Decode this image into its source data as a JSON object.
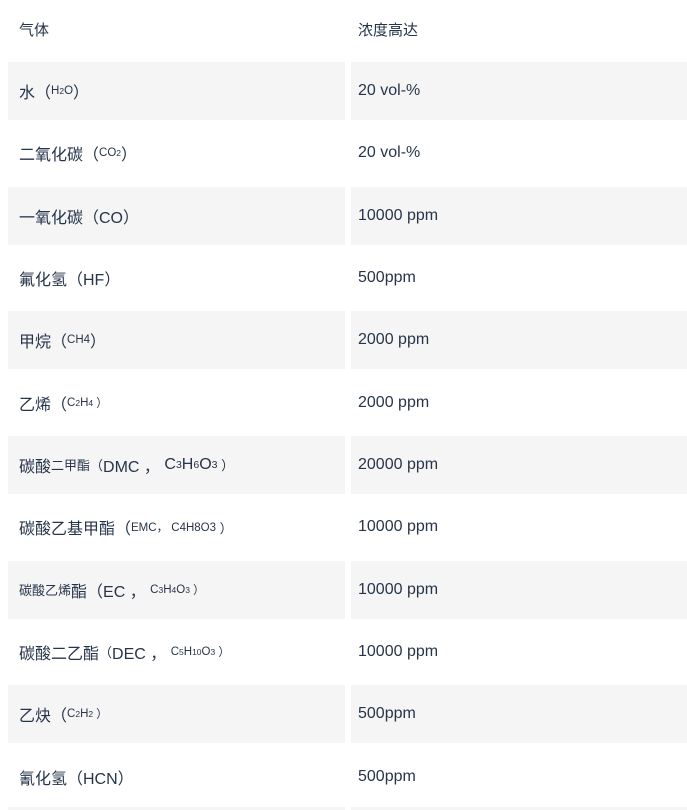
{
  "colors": {
    "page_bg": "#ffffff",
    "row_alt_bg": "#f5f5f5",
    "text": "#26354a"
  },
  "table": {
    "headers": [
      {
        "label": "气体"
      },
      {
        "label": "浓度高达"
      }
    ],
    "rows": [
      {
        "segments": [
          {
            "t": "水（",
            "c": "n"
          },
          {
            "t": "H",
            "c": "s"
          },
          {
            "t": "2",
            "c": "s-sub"
          },
          {
            "t": "O",
            "c": "s"
          },
          {
            "t": "）",
            "c": "n"
          }
        ],
        "value": "20 vol-%"
      },
      {
        "segments": [
          {
            "t": "二氧化碳（",
            "c": "n"
          },
          {
            "t": "CO",
            "c": "s"
          },
          {
            "t": "2",
            "c": "s-sub"
          },
          {
            "t": "）",
            "c": "n"
          }
        ],
        "value": "20 vol-%"
      },
      {
        "segments": [
          {
            "t": "一氧化碳（CO）",
            "c": "n"
          }
        ],
        "value": "10000 ppm"
      },
      {
        "segments": [
          {
            "t": "氟化氢（HF）",
            "c": "n"
          }
        ],
        "value": "500ppm"
      },
      {
        "segments": [
          {
            "t": "甲烷（",
            "c": "n"
          },
          {
            "t": "CH4",
            "c": "s"
          },
          {
            "t": "）",
            "c": "n"
          }
        ],
        "value": "2000 ppm"
      },
      {
        "segments": [
          {
            "t": "乙烯（",
            "c": "n"
          },
          {
            "t": "C",
            "c": "s"
          },
          {
            "t": "2",
            "c": "s-sub"
          },
          {
            "t": "H",
            "c": "s"
          },
          {
            "t": "4",
            "c": "s-sub"
          },
          {
            "t": " ）",
            "c": "s"
          }
        ],
        "value": "2000 ppm"
      },
      {
        "segments": [
          {
            "t": "碳酸",
            "c": "n"
          },
          {
            "t": "二甲酯",
            "c": "m"
          },
          {
            "t": "（",
            "c": "m"
          },
          {
            "t": "DMC ， ",
            "c": "n"
          },
          {
            "t": "C",
            "c": "n"
          },
          {
            "t": "3",
            "c": "n-sub"
          },
          {
            "t": "H",
            "c": "n"
          },
          {
            "t": "6",
            "c": "n-sub"
          },
          {
            "t": "O",
            "c": "n"
          },
          {
            "t": "3",
            "c": "n-sub"
          },
          {
            "t": " ）",
            "c": "m"
          }
        ],
        "value": "20000 ppm"
      },
      {
        "segments": [
          {
            "t": "碳酸乙基甲酯（",
            "c": "n"
          },
          {
            "t": "EMC， C4H8O3",
            "c": "s"
          },
          {
            "t": " ）",
            "c": "m"
          }
        ],
        "value": "10000 ppm"
      },
      {
        "segments": [
          {
            "t": "碳酸乙烯",
            "c": "m"
          },
          {
            "t": "酯（EC ， ",
            "c": "n"
          },
          {
            "t": "C",
            "c": "s"
          },
          {
            "t": "3",
            "c": "s-sub"
          },
          {
            "t": "H",
            "c": "s"
          },
          {
            "t": "4",
            "c": "s-sub"
          },
          {
            "t": "O",
            "c": "s"
          },
          {
            "t": "3",
            "c": "s-sub"
          },
          {
            "t": " ）",
            "c": "s"
          }
        ],
        "value": "10000 ppm"
      },
      {
        "segments": [
          {
            "t": "碳酸二乙酯",
            "c": "n"
          },
          {
            "t": "（",
            "c": "m"
          },
          {
            "t": "DEC ， ",
            "c": "n"
          },
          {
            "t": "C",
            "c": "s"
          },
          {
            "t": "5",
            "c": "s-sub"
          },
          {
            "t": "H",
            "c": "s"
          },
          {
            "t": "10",
            "c": "s-sub"
          },
          {
            "t": "O",
            "c": "s"
          },
          {
            "t": "3",
            "c": "s-sub"
          },
          {
            "t": " ）",
            "c": "s"
          }
        ],
        "value": "10000 ppm"
      },
      {
        "segments": [
          {
            "t": "乙炔（",
            "c": "n"
          },
          {
            "t": "C",
            "c": "s"
          },
          {
            "t": "2",
            "c": "s-sub"
          },
          {
            "t": "H",
            "c": "s"
          },
          {
            "t": "2",
            "c": "s-sub"
          },
          {
            "t": " ）",
            "c": "s"
          }
        ],
        "value": "500ppm"
      },
      {
        "segments": [
          {
            "t": "氰化氢（HCN）",
            "c": "n"
          }
        ],
        "value": "500ppm"
      }
    ]
  }
}
